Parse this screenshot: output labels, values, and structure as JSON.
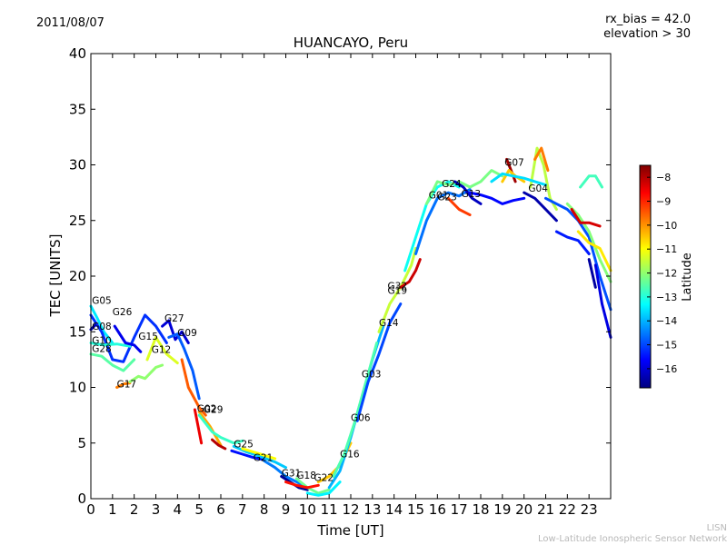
{
  "header": {
    "date": "2011/08/07",
    "rx_bias": "rx_bias = 42.0",
    "elevation": "elevation > 30"
  },
  "footer": {
    "org_short": "LISN",
    "org_full": "Low-Latitude Ionospheric Sensor Network"
  },
  "chart_data": {
    "type": "scatter",
    "title": "HUANCAYO, Peru",
    "xlabel": "Time [UT]",
    "ylabel": "TEC [UNITS]",
    "xlim": [
      0,
      24
    ],
    "ylim": [
      0,
      40
    ],
    "x_ticks": [
      "0",
      "1",
      "2",
      "3",
      "4",
      "5",
      "6",
      "7",
      "8",
      "9",
      "10",
      "11",
      "12",
      "13",
      "14",
      "15",
      "16",
      "17",
      "18",
      "19",
      "20",
      "21",
      "22",
      "23"
    ],
    "y_ticks": [
      "0",
      "5",
      "10",
      "15",
      "20",
      "25",
      "30",
      "35",
      "40"
    ],
    "grid": false,
    "colorbar": {
      "label": "Latitude",
      "range": [
        -16.8,
        -7.5
      ],
      "ticks": [
        "-8",
        "-9",
        "-10",
        "-11",
        "-12",
        "-13",
        "-14",
        "-15",
        "-16"
      ],
      "colors": [
        "#00007f",
        "#0000ff",
        "#007fff",
        "#00ffff",
        "#7fff7f",
        "#ffff00",
        "#ff7f00",
        "#ff0000",
        "#7f0000"
      ]
    },
    "annotations": [
      {
        "text": "G05",
        "x": 0.05,
        "y": 17.5
      },
      {
        "text": "G08",
        "x": 0.05,
        "y": 15.2
      },
      {
        "text": "G10",
        "x": 0.05,
        "y": 13.9
      },
      {
        "text": "G28",
        "x": 0.05,
        "y": 13.2
      },
      {
        "text": "G26",
        "x": 1.0,
        "y": 16.5
      },
      {
        "text": "G15",
        "x": 2.2,
        "y": 14.3
      },
      {
        "text": "G12",
        "x": 2.8,
        "y": 13.1
      },
      {
        "text": "G27",
        "x": 3.4,
        "y": 15.9
      },
      {
        "text": "G09",
        "x": 4.0,
        "y": 14.6
      },
      {
        "text": "G17",
        "x": 1.2,
        "y": 10.0
      },
      {
        "text": "G02",
        "x": 4.9,
        "y": 7.8
      },
      {
        "text": "G29",
        "x": 5.2,
        "y": 7.7
      },
      {
        "text": "G25",
        "x": 6.6,
        "y": 4.6
      },
      {
        "text": "G21",
        "x": 7.5,
        "y": 3.4
      },
      {
        "text": "G31",
        "x": 8.8,
        "y": 2.0
      },
      {
        "text": "G18",
        "x": 9.5,
        "y": 1.8
      },
      {
        "text": "G22",
        "x": 10.3,
        "y": 1.6
      },
      {
        "text": "G16",
        "x": 11.5,
        "y": 3.7
      },
      {
        "text": "G06",
        "x": 12.0,
        "y": 7.0
      },
      {
        "text": "G03",
        "x": 12.5,
        "y": 10.9
      },
      {
        "text": "G14",
        "x": 13.3,
        "y": 15.5
      },
      {
        "text": "G19",
        "x": 13.7,
        "y": 18.4
      },
      {
        "text": "G32",
        "x": 13.7,
        "y": 18.8
      },
      {
        "text": "G01",
        "x": 15.6,
        "y": 27.0
      },
      {
        "text": "G23",
        "x": 16.0,
        "y": 26.8
      },
      {
        "text": "G24",
        "x": 16.2,
        "y": 28.0
      },
      {
        "text": "G13",
        "x": 17.1,
        "y": 27.1
      },
      {
        "text": "G07",
        "x": 19.1,
        "y": 29.9
      },
      {
        "text": "G04",
        "x": 20.2,
        "y": 27.6
      }
    ],
    "series": [
      {
        "lat": -13.5,
        "x": [
          0,
          0.3,
          0.6,
          1.0
        ],
        "y": [
          17.3,
          16.2,
          15.0,
          14.0
        ]
      },
      {
        "lat": -15.2,
        "x": [
          0,
          0.5,
          1.0,
          1.5,
          2.0,
          2.5,
          3.0,
          3.5
        ],
        "y": [
          16.5,
          15.0,
          12.5,
          12.3,
          14.5,
          16.5,
          15.5,
          14.0
        ]
      },
      {
        "lat": -16.3,
        "x": [
          0,
          0.2
        ],
        "y": [
          15.2,
          15.6
        ]
      },
      {
        "lat": -12.5,
        "x": [
          0,
          0.5,
          1.0,
          1.5,
          2.0
        ],
        "y": [
          13.0,
          12.8,
          12.0,
          11.5,
          12.5
        ]
      },
      {
        "lat": -13.0,
        "x": [
          0,
          0.6,
          1.2,
          1.8
        ],
        "y": [
          14.0,
          13.8,
          13.9,
          13.7
        ]
      },
      {
        "lat": -15.8,
        "x": [
          1.1,
          1.6,
          2.0,
          2.3
        ],
        "y": [
          15.5,
          14.0,
          13.8,
          13.2
        ]
      },
      {
        "lat": -9.8,
        "x": [
          1.2,
          1.5,
          1.8
        ],
        "y": [
          10.0,
          10.3,
          10.4
        ]
      },
      {
        "lat": -12.0,
        "x": [
          1.8,
          2.2,
          2.5,
          3.0,
          3.3
        ],
        "y": [
          10.5,
          11.0,
          10.8,
          11.8,
          12.0
        ]
      },
      {
        "lat": -11.3,
        "x": [
          2.6,
          3.0,
          3.5,
          4.0
        ],
        "y": [
          12.5,
          14.5,
          13.0,
          12.2
        ]
      },
      {
        "lat": -16.0,
        "x": [
          3.3,
          3.6,
          3.9,
          4.2,
          4.5
        ],
        "y": [
          15.5,
          16.0,
          14.3,
          15.0,
          14.0
        ]
      },
      {
        "lat": -14.8,
        "x": [
          3.6,
          4.0,
          4.3,
          4.7,
          5.0
        ],
        "y": [
          14.5,
          14.8,
          13.5,
          11.5,
          9.0
        ]
      },
      {
        "lat": -9.5,
        "x": [
          4.2,
          4.5,
          5.0,
          5.3
        ],
        "y": [
          12.5,
          10.0,
          8.2,
          7.5
        ]
      },
      {
        "lat": -8.5,
        "x": [
          4.8,
          5.0,
          5.1
        ],
        "y": [
          8.0,
          6.0,
          5.0
        ]
      },
      {
        "lat": -10.2,
        "x": [
          5.0,
          5.5,
          6.0
        ],
        "y": [
          7.8,
          6.5,
          4.8
        ]
      },
      {
        "lat": -8.0,
        "x": [
          5.6,
          5.9,
          6.2
        ],
        "y": [
          5.3,
          4.8,
          4.5
        ]
      },
      {
        "lat": -12.8,
        "x": [
          5.0,
          5.6,
          6.0,
          6.6,
          7.0
        ],
        "y": [
          7.5,
          6.0,
          5.5,
          5.0,
          5.2
        ]
      },
      {
        "lat": -15.5,
        "x": [
          6.5,
          7.0,
          7.5,
          8.0
        ],
        "y": [
          4.3,
          4.0,
          3.7,
          3.5
        ]
      },
      {
        "lat": -13.8,
        "x": [
          6.6,
          7.2,
          7.8,
          8.5,
          9.0
        ],
        "y": [
          4.7,
          4.2,
          3.8,
          3.3,
          2.8
        ]
      },
      {
        "lat": -11.0,
        "x": [
          7.0,
          7.5,
          8.0,
          8.5
        ],
        "y": [
          4.5,
          4.2,
          3.9,
          3.6
        ]
      },
      {
        "lat": -14.5,
        "x": [
          8.0,
          8.5,
          9.0,
          9.5,
          10.0
        ],
        "y": [
          3.4,
          2.8,
          2.0,
          1.5,
          1.0
        ]
      },
      {
        "lat": -16.6,
        "x": [
          8.8,
          9.2,
          9.6,
          10.0
        ],
        "y": [
          2.0,
          1.5,
          1.0,
          0.8
        ]
      },
      {
        "lat": -12.3,
        "x": [
          9.5,
          10.0,
          10.5,
          11.0
        ],
        "y": [
          1.8,
          1.0,
          0.5,
          0.8
        ]
      },
      {
        "lat": -8.8,
        "x": [
          9.0,
          9.5,
          10.0,
          10.5
        ],
        "y": [
          1.5,
          1.2,
          1.0,
          1.2
        ]
      },
      {
        "lat": -13.4,
        "x": [
          10.0,
          10.5,
          11.0,
          11.5
        ],
        "y": [
          0.5,
          0.3,
          0.5,
          1.5
        ]
      },
      {
        "lat": -10.5,
        "x": [
          10.5,
          11.0,
          11.5,
          12.0
        ],
        "y": [
          1.5,
          2.0,
          3.0,
          5.0
        ]
      },
      {
        "lat": -14.0,
        "x": [
          11.0,
          11.5,
          12.0,
          12.5,
          13.0,
          13.5
        ],
        "y": [
          1.0,
          2.5,
          5.5,
          9.0,
          12.5,
          15.5
        ]
      },
      {
        "lat": -12.6,
        "x": [
          11.2,
          11.7,
          12.2,
          12.7,
          13.2
        ],
        "y": [
          2.0,
          4.0,
          7.0,
          10.5,
          14.0
        ]
      },
      {
        "lat": -15.0,
        "x": [
          12.3,
          12.8,
          13.3,
          13.8,
          14.3
        ],
        "y": [
          7.0,
          10.5,
          13.0,
          15.8,
          17.5
        ]
      },
      {
        "lat": -11.5,
        "x": [
          13.3,
          13.8,
          14.3,
          14.8,
          15.0
        ],
        "y": [
          15.0,
          17.5,
          19.0,
          21.0,
          22.5
        ]
      },
      {
        "lat": -8.2,
        "x": [
          14.3,
          14.7,
          15.0,
          15.2
        ],
        "y": [
          19.0,
          19.5,
          20.5,
          21.5
        ]
      },
      {
        "lat": -13.2,
        "x": [
          14.5,
          15.0,
          15.5,
          16.0,
          16.5,
          17.0
        ],
        "y": [
          20.5,
          23.5,
          26.5,
          28.0,
          28.5,
          28.0
        ]
      },
      {
        "lat": -14.6,
        "x": [
          15.0,
          15.5,
          16.0,
          16.5,
          17.0,
          17.5
        ],
        "y": [
          22.0,
          25.0,
          27.0,
          27.5,
          27.2,
          27.8
        ]
      },
      {
        "lat": -12.2,
        "x": [
          15.5,
          16.0,
          16.5,
          17.0,
          17.5,
          18.0,
          18.5,
          19.0
        ],
        "y": [
          26.5,
          28.5,
          28.2,
          28.5,
          28.0,
          28.5,
          29.5,
          29.0
        ]
      },
      {
        "lat": -9.2,
        "x": [
          16.5,
          17.0,
          17.5
        ],
        "y": [
          27.0,
          26.0,
          25.5
        ]
      },
      {
        "lat": -16.2,
        "x": [
          16.8,
          17.2,
          17.6,
          18.0
        ],
        "y": [
          28.5,
          28.0,
          27.0,
          26.5
        ]
      },
      {
        "lat": -15.6,
        "x": [
          17.5,
          18.0,
          18.5,
          19.0,
          19.5,
          20.0
        ],
        "y": [
          27.5,
          27.3,
          27.0,
          26.5,
          26.8,
          27.0
        ]
      },
      {
        "lat": -7.8,
        "x": [
          19.2,
          19.4,
          19.6
        ],
        "y": [
          30.5,
          29.5,
          28.5
        ]
      },
      {
        "lat": -10.5,
        "x": [
          19.0,
          19.3,
          19.6,
          20.0
        ],
        "y": [
          28.5,
          29.5,
          29.0,
          28.5
        ]
      },
      {
        "lat": -11.6,
        "x": [
          20.3,
          20.6,
          20.9,
          21.2,
          21.5
        ],
        "y": [
          28.0,
          31.5,
          30.0,
          27.0,
          26.0
        ]
      },
      {
        "lat": -9.8,
        "x": [
          20.5,
          20.8,
          21.1
        ],
        "y": [
          30.5,
          31.5,
          29.5
        ]
      },
      {
        "lat": -13.6,
        "x": [
          18.5,
          19.0,
          19.5,
          20.0,
          20.5,
          21.0
        ],
        "y": [
          28.5,
          29.2,
          29.0,
          28.8,
          28.5,
          28.2
        ]
      },
      {
        "lat": -16.4,
        "x": [
          20.0,
          20.5,
          21.0,
          21.5
        ],
        "y": [
          27.5,
          27.0,
          26.0,
          25.0
        ]
      },
      {
        "lat": -14.9,
        "x": [
          21.0,
          21.5,
          22.0,
          22.5,
          23.0,
          23.5,
          24.0
        ],
        "y": [
          27.0,
          26.5,
          26.0,
          25.0,
          23.5,
          20.0,
          17.0
        ]
      },
      {
        "lat": -12.1,
        "x": [
          22.0,
          22.5,
          23.0,
          23.5,
          24.0
        ],
        "y": [
          26.5,
          25.5,
          24.0,
          21.5,
          19.5
        ]
      },
      {
        "lat": -12.7,
        "x": [
          22.6,
          23.0,
          23.3,
          23.6
        ],
        "y": [
          28.0,
          29.0,
          29.0,
          28.0
        ]
      },
      {
        "lat": -8.3,
        "x": [
          22.2,
          22.6,
          23.0,
          23.5
        ],
        "y": [
          26.0,
          24.8,
          24.8,
          24.5
        ]
      },
      {
        "lat": -15.4,
        "x": [
          21.5,
          22.0,
          22.5,
          23.0
        ],
        "y": [
          24.0,
          23.5,
          23.2,
          22.0
        ]
      },
      {
        "lat": -16.5,
        "x": [
          23.0,
          23.3
        ],
        "y": [
          21.5,
          19.0
        ]
      },
      {
        "lat": -10.8,
        "x": [
          22.5,
          23.0,
          23.5,
          24.0
        ],
        "y": [
          24.0,
          23.0,
          22.5,
          20.5
        ]
      },
      {
        "lat": -15.9,
        "x": [
          23.3,
          23.6,
          24.0
        ],
        "y": [
          21.0,
          17.5,
          14.5
        ]
      }
    ]
  }
}
